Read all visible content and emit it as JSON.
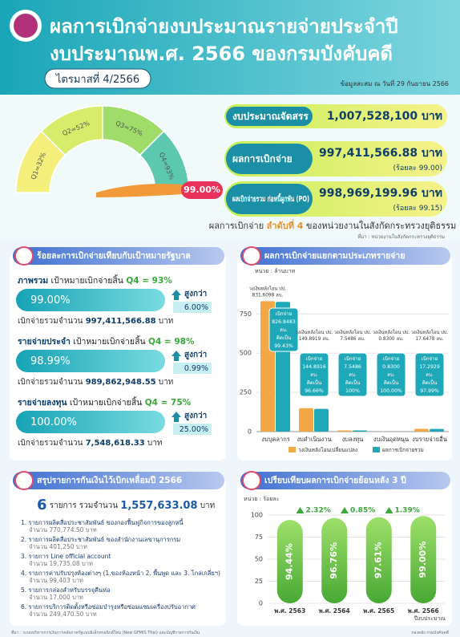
{
  "header": {
    "title_lines": [
      "ผลการเบิกจ่ายงบประมาณรายจ่ายประจำปี",
      "งบประมาณพ.ศ. 2566 ของกรมบังคับคดี"
    ],
    "quarter": "ไตรมาสที่ 4/2566",
    "date_note": "ข้อมูลสะสม ณ วันที่ 29 กันยายน 2566"
  },
  "gauge": {
    "labels": [
      "Q1=32%",
      "Q2=52%",
      "Q3=75%",
      "Q4=93%"
    ],
    "value": "99.00%"
  },
  "summary": [
    {
      "label": "งบประมาณจัดสรร",
      "amount": "1,007,528,100 บาท"
    },
    {
      "label": "ผลการเบิกจ่าย",
      "amount": "997,411,566.88 บาท",
      "percent": "(ร้อยละ 99.00)"
    },
    {
      "label": "ผลเบิกจ่ายรวม ก่อหนี้ผูกพัน (PO)",
      "amount": "998,969,199.96 บาท",
      "percent": "(ร้อยละ 99.15)"
    }
  ],
  "rank": {
    "before": "ผลการเบิกจ่าย ",
    "rank": "ลำดับที่ 4",
    "after": " ของหน่วยงานในสังกัดกระทรวงยุติธรรม",
    "source": "ที่มา : หน่วยงานในสังกัดกระทรวงยุติธรรม"
  },
  "targets": {
    "title": "ร้อยละการเบิกจ่ายเทียบกับเป้าหมายรัฐบาล",
    "items": [
      {
        "label": "ภาพรวม",
        "target": " เป้าหมายเบิกจ่ายสิ้น ",
        "quarter": "Q4 = 93%",
        "value": "99.00%",
        "higher": "สูงกว่า",
        "diff": "6.00%",
        "total_label": "เบิกจ่ายรวมจำนวน ",
        "total": "997,411,566.88",
        "unit": " บาท"
      },
      {
        "label": "รายจ่ายประจำ",
        "target": " เป้าหมายเบิกจ่ายสิ้น ",
        "quarter": "Q4 = 98%",
        "value": "98.99%",
        "higher": "สูงกว่า",
        "diff": "0.99%",
        "total_label": "เบิกจ่ายรวมจำนวน ",
        "total": "989,862,948.55",
        "unit": " บาท"
      },
      {
        "label": "รายจ่ายลงทุน",
        "target": " เป้าหมายเบิกจ่ายสิ้น ",
        "quarter": "Q4 = 75%",
        "value": "100.00%",
        "higher": "สูงกว่า",
        "diff": "25.00%",
        "total_label": "เบิกจ่ายรวมจำนวน ",
        "total": "7,548,618.33",
        "unit": " บาท"
      }
    ]
  },
  "carryover": {
    "title": "สรุปรายการกันเงินไว้เบิกเหลื่อมปี 2566",
    "count": "6",
    "count_text": " รายการ รวมจำนวน ",
    "total": "1,557,633.08",
    "unit": " บาท",
    "items": [
      {
        "name": "1. รายการผลิตสื่อประชาสัมพันธ์ ของกองฟื้นฟูกิจการของลูกหนี้",
        "amount": "จำนวน 770,774.50 บาท"
      },
      {
        "name": "2. รายการผลิตสื่อประชาสัมพันธ์ ของสำนักงานเลขานุการกรม",
        "amount": "จำนวน 401,250 บาท"
      },
      {
        "name": "3. รายการ Line official account",
        "amount": "จำนวน 19,735.08 บาท"
      },
      {
        "name": "4. รายการค่าปรับปรุงห้องต่างๆ (1.ของห้องหน้า 2. พื้นพูด และ 3. ไกล่เกลี่ยฯ)",
        "amount": "จำนวน 99,403 บาท"
      },
      {
        "name": "5. รายการกล่องสำหรับบรรจุคืนห่อ",
        "amount": "จำนวน 17,000 บาท"
      },
      {
        "name": "6. รายการบริการติดตั้งหรือซ่อมบำรุงหรือซ่อมแซมเครื่องปรับอากาศ",
        "amount": "จำนวน 249,470.50 บาท"
      }
    ]
  },
  "chart_data": [
    {
      "type": "bar",
      "title": "ผลการเบิกจ่ายแยกตามประเภทรายจ่าย",
      "unit_label": "หน่วย : ล้านบาท",
      "categories": [
        "งบบุคลากร",
        "งบดำเนินงาน",
        "งบลงทุน",
        "งบเงินอุดหนุน",
        "งบรายจ่ายอื่น"
      ],
      "series": [
        {
          "name": "วงเงินหลังโอนเปลี่ยนแปลง",
          "color": "#f2a844",
          "label_prefix": "วงเงินหลังโอน ปป.",
          "label_suffix": "ลบ.",
          "values": [
            831.6098,
            149.8919,
            7.5486,
            0.83,
            17.6478
          ],
          "value_labels": [
            "831.6098",
            "149.8919",
            "7.5486",
            "0.8300",
            "17.6478"
          ]
        },
        {
          "name": "ผลการเบิกจ่ายรวม",
          "color": "#1fa9b8",
          "label_prefix": "เบิกจ่าย",
          "label_suffix": "ลบ.",
          "percent_prefix": "คิดเป็น",
          "values": [
            826.8483,
            144.8916,
            7.5486,
            0.83,
            17.2929
          ],
          "value_labels": [
            "826.8483",
            "144.8916",
            "7.5486",
            "0.8300",
            "17.2929"
          ],
          "percent_labels": [
            "99.43%",
            "96.66%",
            "100%",
            "100.00%",
            "97.99%"
          ]
        }
      ],
      "ylim": [
        0,
        900
      ],
      "yticks": [
        0,
        250,
        500,
        750
      ],
      "grid": true
    },
    {
      "type": "bar",
      "title": "เปรียบเทียบผลการเบิกจ่ายย้อนหลัง 3 ปี",
      "unit_label": "หน่วย : ร้อยละ",
      "x_label": "ปีงบประมาณ",
      "categories": [
        "พ.ศ. 2563",
        "พ.ศ. 2564",
        "พ.ศ. 2565",
        "พ.ศ. 2566"
      ],
      "values": [
        94.44,
        96.76,
        97.61,
        99.0
      ],
      "value_labels": [
        "94.44%",
        "96.76%",
        "97.61%",
        "99.00%"
      ],
      "changes": [
        "2.32%",
        "0.85%",
        "1.39%"
      ],
      "color": "#6cc24a",
      "ylim": [
        0,
        100
      ],
      "yticks": [
        0,
        25,
        50,
        75,
        100
      ],
      "grid": true
    }
  ],
  "footer": {
    "left": "ที่มา : ระบบบริหารการเงินการคลังภาครัฐแบบอิเล็กทรอนิกส์ใหม่ (New GFMIS Thai) และบัญชีรายการกันเงิน",
    "right": "กองคลัง กรมบังคับคดี"
  }
}
